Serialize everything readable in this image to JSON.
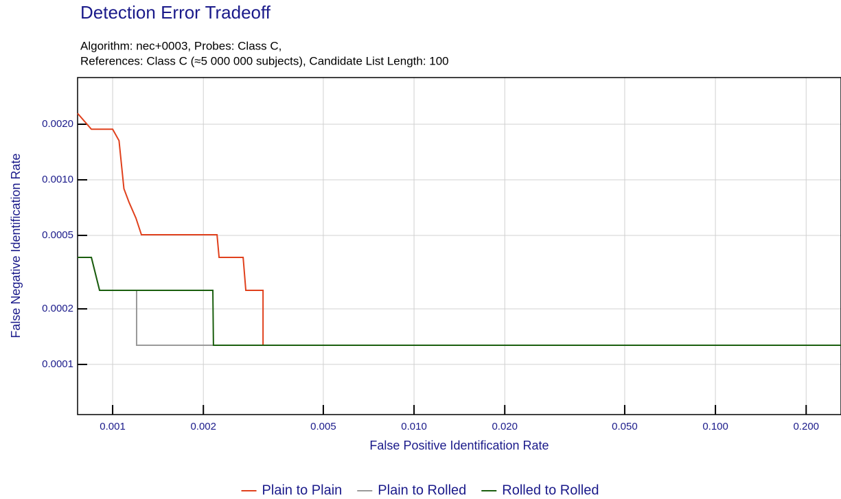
{
  "chart_data": {
    "type": "line",
    "title": "Detection Error Tradeoff",
    "subtitle": [
      "Algorithm: nec+0003, Probes: Class C,",
      "References: Class C (≈5 000 000 subjects), Candidate List Length: 100"
    ],
    "x_label": "False Positive Identification Rate",
    "y_label": "False Negative Identification Rate",
    "xlog": true,
    "ylog": true,
    "grid": true,
    "legend": "bottom",
    "xlim": [
      0.000765,
      0.261
    ],
    "ylim": [
      5.35e-05,
      0.00358
    ],
    "xticks": [
      0.001,
      0.002,
      0.005,
      {
        "value": 0.01,
        "label": "0.010"
      },
      {
        "value": 0.02,
        "label": "0.020"
      },
      {
        "value": 0.05,
        "label": "0.050"
      },
      {
        "value": 0.1,
        "label": "0.100"
      },
      {
        "value": 0.2,
        "label": "0.200"
      }
    ],
    "yticks": [
      0.0001,
      0.0002,
      0.0005,
      {
        "value": 0.001,
        "label": "0.0010"
      },
      {
        "value": 0.002,
        "label": "0.0020"
      }
    ],
    "series": [
      {
        "name": "Plain to Plain",
        "color": "#e0401c",
        "x": [
          0.000765,
          0.00085,
          0.001,
          0.00105,
          0.00109,
          0.001134,
          0.001195,
          0.001246,
          0.00222,
          0.002255,
          0.00271,
          0.002766,
          0.003155,
          0.003155,
          0.261
        ],
        "values": [
          0.00229,
          0.00188,
          0.00188,
          0.00163,
          0.000895,
          0.000754,
          0.00062,
          0.000504,
          0.000504,
          0.00038,
          0.00038,
          0.000252,
          0.000252,
          0.000127,
          0.000127
        ]
      },
      {
        "name": "Plain to Rolled",
        "color": "#999999",
        "x": [
          0.000765,
          0.00085,
          0.000905,
          0.001201,
          0.001201,
          0.261
        ],
        "values": [
          0.00038,
          0.00038,
          0.000252,
          0.000252,
          0.000127,
          0.000127
        ]
      },
      {
        "name": "Rolled to Rolled",
        "color": "#1a5e0e",
        "x": [
          0.000765,
          0.00085,
          0.000905,
          0.00215,
          0.00216,
          0.261
        ],
        "values": [
          0.00038,
          0.00038,
          0.000252,
          0.000252,
          0.000127,
          0.000127
        ]
      }
    ]
  }
}
